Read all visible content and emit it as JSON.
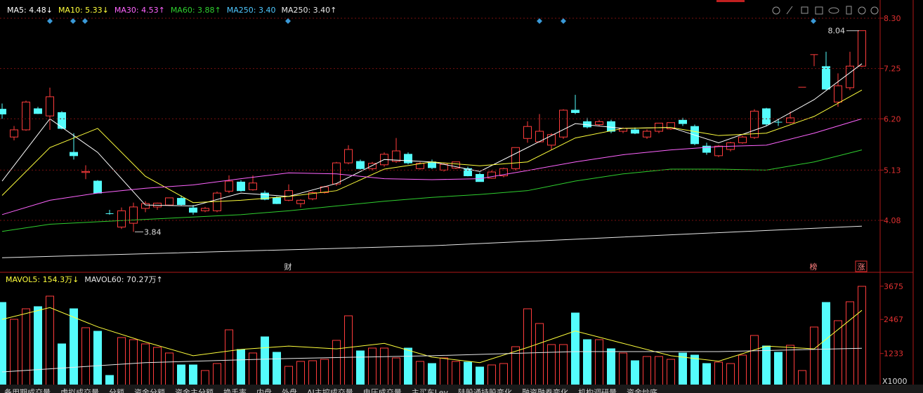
{
  "chart_data": [
    {
      "type": "candlestick",
      "ylim": [
        3.04,
        8.68
      ],
      "yticks": [
        {
          "value": 8.3,
          "label": "8.30"
        },
        7.25,
        {
          "value": 6.2,
          "label": "6.20"
        },
        5.13,
        4.08
      ],
      "grid": true,
      "colors": {
        "up": "#ff3c3c",
        "down": "#54fcfc"
      },
      "open": [
        6.4,
        5.82,
        5.97,
        6.41,
        6.26,
        6.33,
        5.5,
        5.08,
        4.9,
        4.22,
        3.94,
        4.02,
        4.33,
        4.36,
        4.4,
        4.54,
        4.34,
        4.28,
        4.28,
        4.69,
        4.88,
        4.72,
        4.65,
        4.55,
        4.5,
        4.43,
        4.53,
        4.66,
        4.84,
        5.28,
        5.31,
        5.16,
        5.24,
        5.31,
        5.46,
        5.16,
        5.3,
        5.13,
        5.17,
        5.16,
        5.04,
        4.96,
        5.01,
        5.16,
        5.79,
        5.72,
        5.65,
        5.82,
        6.38,
        6.14,
        6.08,
        6.14,
        5.94,
        5.97,
        5.82,
        5.94,
        5.99,
        6.17,
        6.04,
        5.63,
        5.43,
        5.56,
        5.7,
        5.81,
        6.41,
        6.13,
        6.12,
        6.86,
        7.54,
        7.29,
        6.55,
        6.85,
        7.3
      ],
      "high": [
        6.52,
        6.05,
        6.58,
        6.45,
        6.85,
        6.36,
        5.9,
        5.23,
        4.92,
        4.3,
        4.35,
        4.45,
        4.48,
        4.45,
        4.55,
        4.6,
        4.4,
        4.36,
        4.68,
        5.02,
        4.92,
        5.02,
        4.7,
        4.58,
        4.83,
        4.52,
        4.68,
        4.8,
        5.3,
        5.65,
        5.35,
        5.3,
        5.5,
        5.8,
        5.5,
        5.3,
        5.35,
        5.28,
        5.3,
        5.2,
        5.08,
        5.12,
        5.18,
        5.6,
        6.15,
        6.3,
        5.9,
        6.4,
        6.7,
        6.22,
        6.18,
        6.18,
        6.02,
        6.02,
        5.98,
        6.1,
        6.12,
        6.22,
        6.08,
        5.7,
        5.65,
        5.72,
        5.85,
        6.4,
        6.43,
        6.2,
        6.35,
        6.86,
        7.54,
        7.6,
        7.15,
        7.6,
        8.04
      ],
      "low": [
        6.2,
        5.75,
        5.95,
        6.3,
        5.97,
        5.98,
        5.35,
        4.94,
        4.65,
        4.2,
        3.9,
        3.84,
        4.25,
        4.3,
        4.38,
        4.38,
        4.2,
        4.25,
        4.25,
        4.65,
        4.68,
        4.7,
        4.5,
        4.42,
        4.48,
        4.35,
        4.5,
        4.64,
        4.8,
        5.25,
        5.14,
        5.12,
        5.2,
        5.28,
        5.25,
        5.14,
        5.15,
        5.1,
        5.15,
        5.0,
        4.89,
        4.95,
        4.98,
        5.12,
        5.7,
        5.7,
        5.55,
        5.78,
        6.3,
        6.0,
        6.05,
        5.9,
        5.9,
        5.88,
        5.78,
        5.9,
        5.97,
        6.05,
        5.65,
        5.45,
        5.4,
        5.52,
        5.68,
        5.78,
        6.05,
        6.05,
        6.1,
        6.86,
        7.3,
        6.8,
        6.45,
        6.8,
        7.28
      ],
      "close": [
        6.3,
        5.97,
        6.55,
        6.31,
        6.66,
        6.0,
        5.43,
        5.1,
        4.65,
        4.21,
        4.28,
        4.36,
        4.43,
        4.44,
        4.55,
        4.41,
        4.25,
        4.33,
        4.65,
        4.9,
        4.7,
        4.86,
        4.52,
        4.43,
        4.7,
        4.5,
        4.66,
        4.78,
        5.28,
        5.56,
        5.16,
        5.27,
        5.46,
        5.53,
        5.28,
        5.27,
        5.18,
        5.25,
        5.3,
        5.01,
        4.89,
        5.09,
        5.16,
        5.6,
        6.04,
        5.94,
        5.87,
        6.38,
        6.33,
        6.03,
        6.14,
        5.94,
        6.0,
        5.9,
        5.94,
        6.11,
        6.12,
        6.1,
        5.68,
        5.5,
        5.63,
        5.7,
        5.82,
        6.36,
        6.09,
        6.12,
        6.22,
        6.86,
        7.54,
        6.82,
        6.89,
        7.3,
        8.04
      ],
      "high_label": "8.04",
      "low_label": "3.84",
      "markers": [
        "财",
        "榜",
        "涨"
      ],
      "series": [
        {
          "name": "MA5: 4.48↓",
          "color": "#ffffff",
          "x": [
            0,
            4,
            8,
            12,
            16,
            20,
            24,
            28,
            32,
            36,
            40,
            44,
            48,
            52,
            56,
            60,
            64,
            68,
            72
          ],
          "values": [
            4.9,
            6.2,
            5.5,
            4.4,
            4.38,
            4.65,
            4.58,
            4.85,
            5.35,
            5.3,
            5.1,
            5.6,
            6.1,
            6.0,
            6.02,
            5.7,
            6.05,
            6.6,
            7.35
          ]
        },
        {
          "name": "MA10: 5.33↓",
          "color": "#ffff3c",
          "x": [
            0,
            4,
            8,
            12,
            16,
            20,
            24,
            28,
            32,
            36,
            40,
            44,
            48,
            52,
            56,
            60,
            64,
            68,
            72
          ],
          "values": [
            4.6,
            5.6,
            6.0,
            5.0,
            4.45,
            4.5,
            4.58,
            4.7,
            5.15,
            5.3,
            5.22,
            5.3,
            5.8,
            6.0,
            6.02,
            5.85,
            5.9,
            6.25,
            6.8
          ]
        },
        {
          "name": "MA30: 4.53↑",
          "color": "#ff64ff",
          "x": [
            0,
            4,
            8,
            12,
            16,
            20,
            24,
            28,
            32,
            36,
            40,
            44,
            48,
            52,
            56,
            60,
            64,
            68,
            72
          ],
          "values": [
            4.2,
            4.5,
            4.65,
            4.75,
            4.82,
            4.95,
            5.07,
            5.05,
            4.95,
            4.93,
            4.95,
            5.12,
            5.3,
            5.45,
            5.55,
            5.62,
            5.65,
            5.9,
            6.2
          ]
        },
        {
          "name": "MA60: 3.88↑",
          "color": "#2fcf2f",
          "x": [
            0,
            4,
            8,
            12,
            16,
            20,
            24,
            28,
            32,
            36,
            40,
            44,
            48,
            52,
            56,
            60,
            64,
            68,
            72
          ],
          "values": [
            3.85,
            4.0,
            4.05,
            4.1,
            4.15,
            4.2,
            4.28,
            4.38,
            4.48,
            4.56,
            4.62,
            4.7,
            4.9,
            5.05,
            5.15,
            5.15,
            5.13,
            5.3,
            5.55
          ]
        },
        {
          "name": "MA250: 3.40",
          "color": "#4fc8ff",
          "x": [],
          "values": []
        },
        {
          "name": "MA250: 3.40↑",
          "color": "#e8e8e8",
          "x": [
            0,
            36,
            72
          ],
          "values": [
            3.3,
            3.55,
            3.96
          ]
        }
      ]
    },
    {
      "type": "bar",
      "ylim": [
        0,
        4003
      ],
      "yticks": [
        3675,
        2467,
        1233
      ],
      "unit": "X1000",
      "values": [
        3086,
        2474,
        2856,
        2933,
        3315,
        1581,
        2856,
        2168,
        2040,
        434,
        1811,
        1734,
        1581,
        1454,
        1250,
        816,
        816,
        612,
        867,
        2091,
        1377,
        1250,
        1836,
        1275,
        765,
        944,
        969,
        1020,
        1709,
        2601,
        1326,
        1428,
        1428,
        1071,
        1428,
        944,
        867,
        1071,
        944,
        918,
        740,
        816,
        867,
        1479,
        2856,
        2321,
        1556,
        1556,
        2703,
        1734,
        1734,
        1403,
        1250,
        969,
        1122,
        1122,
        1020,
        1250,
        1173,
        867,
        918,
        867,
        1173,
        1887,
        1505,
        1275,
        1530,
        612,
        2193,
        3086,
        2423,
        3111,
        3672
      ],
      "series": [
        {
          "name": "MAVOL5: 154.3万↓",
          "color": "#ffff3c",
          "x": [
            0,
            4,
            8,
            12,
            16,
            20,
            24,
            28,
            32,
            36,
            40,
            44,
            48,
            52,
            56,
            60,
            64,
            68,
            72
          ],
          "values": [
            2470,
            2900,
            2200,
            1650,
            1150,
            1380,
            1500,
            1400,
            1600,
            1100,
            900,
            1450,
            2050,
            1600,
            1150,
            950,
            1500,
            1400,
            2800
          ]
        },
        {
          "name": "MAVOL60: 70.27万↑",
          "color": "#e8e8e8",
          "x": [
            0,
            12,
            24,
            36,
            48,
            60,
            72
          ],
          "values": [
            560,
            900,
            1050,
            1150,
            1300,
            1300,
            1420
          ]
        }
      ]
    }
  ],
  "tabs": [
    "备用期成交量",
    "虚拟成交量",
    "分额",
    "资金分额",
    "资金主分额",
    "换手率",
    "内盘",
    "外盘",
    "AI主控成交量",
    "电压成交量",
    "主买车Lev",
    "陆股通持股变化",
    "融资融券变化",
    "机构调研量",
    "资金炒底"
  ]
}
